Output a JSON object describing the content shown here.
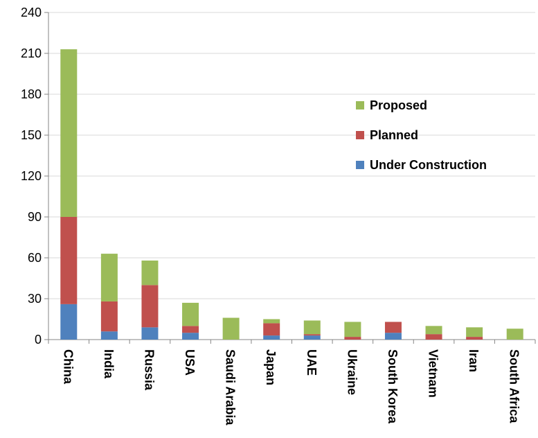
{
  "chart_data": {
    "type": "bar",
    "stacked": true,
    "categories": [
      "China",
      "India",
      "Russia",
      "USA",
      "Saudi Arabia",
      "Japan",
      "UAE",
      "Ukraine",
      "South Korea",
      "Vietnam",
      "Iran",
      "South Africa"
    ],
    "series": [
      {
        "name": "Under Construction",
        "color": "#4F81BD",
        "values": [
          26,
          6,
          9,
          5,
          0,
          3,
          3,
          0,
          5,
          0,
          0,
          0
        ]
      },
      {
        "name": "Planned",
        "color": "#C0504D",
        "values": [
          64,
          22,
          31,
          5,
          0,
          9,
          1,
          2,
          8,
          4,
          2,
          0
        ]
      },
      {
        "name": "Proposed",
        "color": "#9BBB59",
        "values": [
          123,
          35,
          18,
          17,
          16,
          3,
          10,
          11,
          0,
          6,
          7,
          8
        ]
      }
    ],
    "ylim": [
      0,
      240
    ],
    "yticks": [
      0,
      30,
      60,
      90,
      120,
      150,
      180,
      210,
      240
    ],
    "grid": true,
    "legend_position": "right",
    "legend_order": [
      "Proposed",
      "Planned",
      "Under Construction"
    ],
    "title": "",
    "xlabel": "",
    "ylabel": ""
  }
}
